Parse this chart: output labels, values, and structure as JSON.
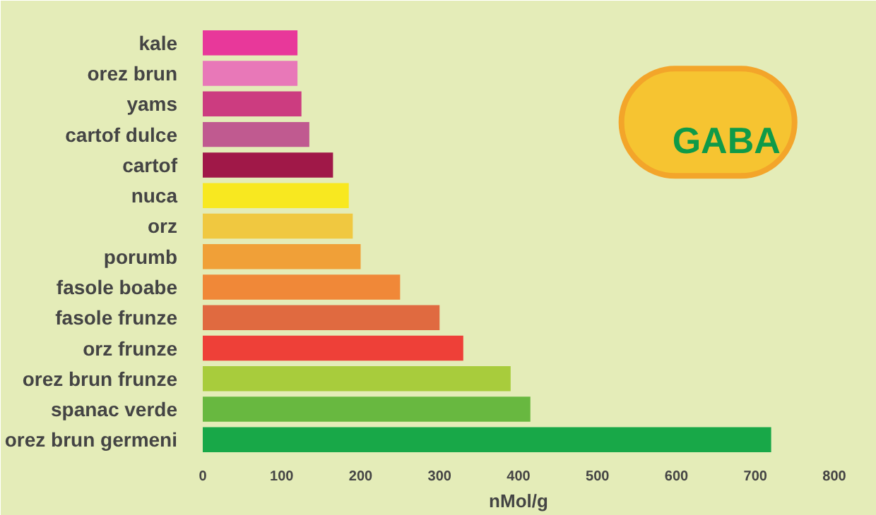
{
  "chart_data": {
    "type": "bar",
    "orientation": "horizontal",
    "xlabel": "nMol/g",
    "categories": [
      "kale",
      "orez brun",
      "yams",
      "cartof dulce",
      "cartof",
      "nuca",
      "orz",
      "porumb",
      "fasole boabe",
      "fasole frunze",
      "orz frunze",
      "orez brun frunze",
      "spanac verde",
      "orez brun germeni"
    ],
    "values": [
      120,
      120,
      125,
      135,
      165,
      185,
      190,
      200,
      250,
      300,
      330,
      390,
      415,
      720
    ],
    "colors": [
      "#e8389a",
      "#e878b8",
      "#cc3c80",
      "#c05a90",
      "#a01848",
      "#f8e820",
      "#f0c840",
      "#f0a038",
      "#f08838",
      "#e06a40",
      "#ee4038",
      "#a8cc3c",
      "#68b840",
      "#18a848"
    ],
    "xlim": [
      0,
      800
    ],
    "xticks": [
      0,
      100,
      200,
      300,
      400,
      500,
      600,
      700,
      800
    ],
    "annotations": [
      "GABA"
    ],
    "grid": false
  }
}
